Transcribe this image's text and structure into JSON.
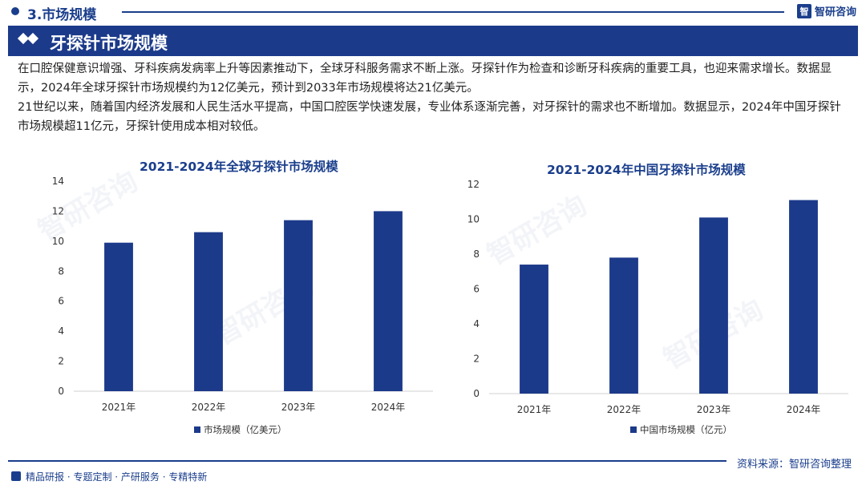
{
  "section": {
    "title": "3.市场规模"
  },
  "brand": {
    "name": "智研咨询",
    "logo_glyph": "智"
  },
  "header": {
    "title": "牙探针市场规模",
    "icon": "double-diamond-icon"
  },
  "paragraphs": [
    "在口腔保健意识增强、牙科疾病发病率上升等因素推动下，全球牙科服务需求不断上涨。牙探针作为检查和诊断牙科疾病的重要工具，也迎来需求增长。数据显示，2024年全球牙探针市场规模约为12亿美元，预计到2033年市场规模将达21亿美元。",
    "21世纪以来，随着国内经济发展和人民生活水平提高，中国口腔医学快速发展，专业体系逐渐完善，对牙探针的需求也不断增加。数据显示，2024年中国牙探针市场规模超11亿元，牙探针使用成本相对较低。"
  ],
  "chart_data": [
    {
      "type": "bar",
      "title": "2021-2024年全球牙探针市场规模",
      "categories": [
        "2021年",
        "2022年",
        "2023年",
        "2024年"
      ],
      "series": [
        {
          "name": "市场规模（亿美元）",
          "values": [
            9.9,
            10.6,
            11.4,
            12.0
          ]
        }
      ],
      "ylim": [
        0,
        14
      ],
      "yticks": [
        0,
        2,
        4,
        6,
        8,
        10,
        12,
        14
      ],
      "grid": false,
      "legend": "bottom",
      "color": "#1c3a8a"
    },
    {
      "type": "bar",
      "title": "2021-2024年中国牙探针市场规模",
      "categories": [
        "2021年",
        "2022年",
        "2023年",
        "2024年"
      ],
      "series": [
        {
          "name": "中国市场规模（亿元）",
          "values": [
            7.4,
            7.8,
            10.1,
            11.1
          ]
        }
      ],
      "ylim": [
        0,
        12
      ],
      "yticks": [
        0,
        2,
        4,
        6,
        8,
        10,
        12
      ],
      "grid": false,
      "legend": "bottom",
      "color": "#1c3a8a"
    }
  ],
  "footer": {
    "source": "资料来源：智研咨询整理",
    "bottom_text": "精品研报 · 专题定制 · 产研服务 · 专精特新"
  },
  "colors": {
    "primary": "#1c3a8a",
    "text": "#222222"
  }
}
